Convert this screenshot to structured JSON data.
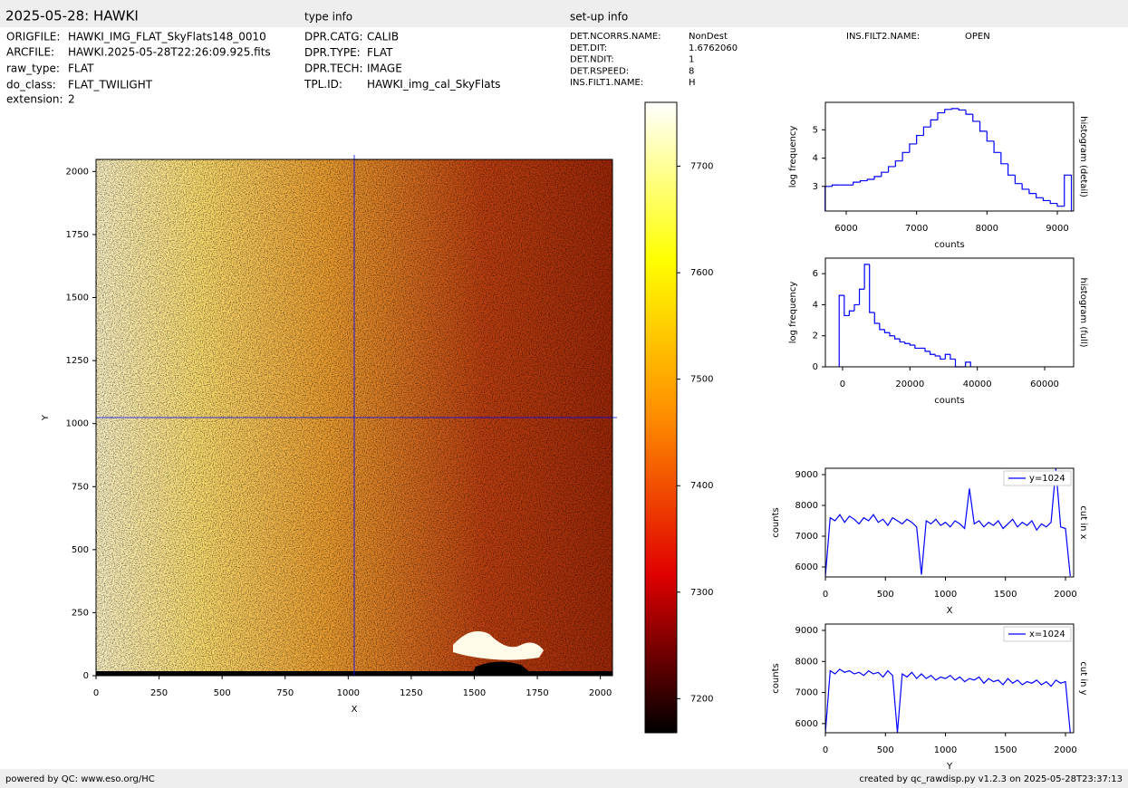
{
  "header": {
    "title": "2025-05-28: HAWKI"
  },
  "file_info": [
    {
      "key": "ORIGFILE:",
      "value": "HAWKI_IMG_FLAT_SkyFlats148_0010"
    },
    {
      "key": "ARCFILE:",
      "value": "HAWKI.2025-05-28T22:26:09.925.fits"
    },
    {
      "key": "raw_type:",
      "value": "FLAT"
    },
    {
      "key": "do_class:",
      "value": "FLAT_TWILIGHT"
    },
    {
      "key": "extension:",
      "value": "2"
    }
  ],
  "type_info": {
    "title": "type info",
    "rows": [
      {
        "key": "DPR.CATG:",
        "value": "CALIB"
      },
      {
        "key": "DPR.TYPE:",
        "value": "FLAT"
      },
      {
        "key": "DPR.TECH:",
        "value": "IMAGE"
      },
      {
        "key": "TPL.ID:",
        "value": "HAWKI_img_cal_SkyFlats"
      }
    ]
  },
  "setup_info": {
    "title": "set-up info",
    "rows": [
      {
        "key": "DET.NCORRS.NAME:",
        "value": "NonDest"
      },
      {
        "key": "DET.DIT:",
        "value": "1.6762060"
      },
      {
        "key": "DET.NDIT:",
        "value": "1"
      },
      {
        "key": "DET.RSPEED:",
        "value": "8"
      },
      {
        "key": "INS.FILT1.NAME:",
        "value": "H"
      },
      {
        "key": "INS.FILT2.NAME:",
        "value": "OPEN"
      }
    ]
  },
  "footer": {
    "left": "powered by QC: www.eso.org/HC",
    "right": "created by qc_rawdisp.py v1.2.3 on 2025-05-28T23:37:13"
  },
  "chart_data": [
    {
      "type": "image",
      "xlabel": "X",
      "ylabel": "Y",
      "xlim": [
        0,
        2048
      ],
      "ylim": [
        0,
        2048
      ],
      "xticks": [
        0,
        250,
        500,
        750,
        1000,
        1250,
        1500,
        1750,
        2000
      ],
      "yticks": [
        0,
        250,
        500,
        750,
        1000,
        1250,
        1500,
        1750,
        2000
      ],
      "crosshair": {
        "x": 1024,
        "y": 1024,
        "color": "#0000ff"
      }
    },
    {
      "type": "colorbar",
      "ylim": [
        7168,
        7760
      ],
      "yticks": [
        7200,
        7300,
        7400,
        7500,
        7600,
        7700
      ],
      "colormap": [
        "#000000",
        "#e00000",
        "#ff8c00",
        "#ffff00",
        "#ffffff"
      ]
    },
    {
      "type": "histogram",
      "xlabel": "counts",
      "ylabel": "log frequency",
      "side_label": "histogram (detail)",
      "color": "#0000ff",
      "xlim": [
        5704,
        9232
      ],
      "ylim": [
        2.13,
        5.97
      ],
      "xticks": [
        6000,
        7000,
        8000,
        9000
      ],
      "yticks": [
        3,
        4,
        5
      ],
      "bins": [
        5700,
        5800,
        5900,
        6000,
        6100,
        6200,
        6300,
        6400,
        6500,
        6600,
        6700,
        6800,
        6900,
        7000,
        7100,
        7200,
        7300,
        7400,
        7500,
        7600,
        7700,
        7800,
        7900,
        8000,
        8100,
        8200,
        8300,
        8400,
        8500,
        8600,
        8700,
        8800,
        8900,
        9000,
        9100,
        9200
      ],
      "counts": [
        3.0,
        3.05,
        3.05,
        3.05,
        3.15,
        3.2,
        3.25,
        3.35,
        3.5,
        3.7,
        3.9,
        4.2,
        4.5,
        4.8,
        5.1,
        5.35,
        5.6,
        5.72,
        5.75,
        5.7,
        5.55,
        5.3,
        4.95,
        4.6,
        4.2,
        3.8,
        3.4,
        3.1,
        2.9,
        2.75,
        2.6,
        2.5,
        2.4,
        2.3,
        3.4
      ]
    },
    {
      "type": "histogram",
      "xlabel": "counts",
      "ylabel": "log frequency",
      "side_label": "histogram (full)",
      "color": "#0000ff",
      "xlim": [
        -5100,
        68600
      ],
      "ylim": [
        0,
        7
      ],
      "xticks": [
        0,
        20000,
        40000,
        60000
      ],
      "yticks": [
        0,
        2,
        4,
        6
      ],
      "bins": [
        -1000,
        500,
        2000,
        3500,
        5000,
        6500,
        8000,
        9500,
        11000,
        12500,
        14000,
        15500,
        17000,
        18500,
        20000,
        21500,
        23000,
        24500,
        26000,
        27500,
        29000,
        30500,
        32000,
        33500,
        35000,
        36500,
        38000
      ],
      "counts": [
        4.6,
        3.3,
        3.6,
        4.0,
        5.0,
        6.6,
        3.5,
        2.8,
        2.4,
        2.2,
        2.0,
        1.8,
        1.6,
        1.5,
        1.4,
        1.2,
        1.2,
        1.0,
        0.8,
        0.7,
        0.5,
        0.8,
        0.5,
        0,
        0,
        0.3
      ]
    },
    {
      "type": "line",
      "xlabel": "X",
      "ylabel": "counts",
      "side_label": "cut in x",
      "xlim": [
        0,
        2068
      ],
      "ylim": [
        5676,
        9206
      ],
      "xticks": [
        0,
        500,
        1000,
        1500,
        2000
      ],
      "yticks": [
        6000,
        7000,
        8000,
        9000
      ],
      "x": [
        0,
        40,
        80,
        120,
        160,
        200,
        240,
        280,
        320,
        360,
        400,
        440,
        480,
        520,
        560,
        600,
        640,
        680,
        720,
        760,
        800,
        840,
        880,
        920,
        960,
        1000,
        1040,
        1080,
        1120,
        1160,
        1200,
        1240,
        1280,
        1320,
        1360,
        1400,
        1440,
        1480,
        1520,
        1560,
        1600,
        1640,
        1680,
        1720,
        1760,
        1800,
        1840,
        1880,
        1920,
        1960,
        2000,
        2040
      ],
      "series": [
        {
          "name": "y=1024",
          "color": "#0000ff",
          "values": [
            5700,
            7600,
            7500,
            7700,
            7450,
            7650,
            7550,
            7400,
            7600,
            7500,
            7700,
            7450,
            7550,
            7350,
            7600,
            7500,
            7400,
            7550,
            7450,
            7300,
            5750,
            7500,
            7400,
            7550,
            7350,
            7450,
            7300,
            7500,
            7400,
            7250,
            8550,
            7400,
            7500,
            7300,
            7450,
            7350,
            7500,
            7250,
            7400,
            7550,
            7300,
            7450,
            7350,
            7500,
            7200,
            7400,
            7300,
            7450,
            9200,
            7300,
            7250,
            5700
          ]
        }
      ]
    },
    {
      "type": "line",
      "xlabel": "Y",
      "ylabel": "counts",
      "side_label": "cut in y",
      "xlim": [
        0,
        2068
      ],
      "ylim": [
        5705,
        9204
      ],
      "xticks": [
        0,
        500,
        1000,
        1500,
        2000
      ],
      "yticks": [
        6000,
        7000,
        8000,
        9000
      ],
      "x": [
        0,
        40,
        80,
        120,
        160,
        200,
        240,
        280,
        320,
        360,
        400,
        440,
        480,
        520,
        560,
        600,
        640,
        680,
        720,
        760,
        800,
        840,
        880,
        920,
        960,
        1000,
        1040,
        1080,
        1120,
        1160,
        1200,
        1240,
        1280,
        1320,
        1360,
        1400,
        1440,
        1480,
        1520,
        1560,
        1600,
        1640,
        1680,
        1720,
        1760,
        1800,
        1840,
        1880,
        1920,
        1960,
        2000,
        2040
      ],
      "series": [
        {
          "name": "x=1024",
          "color": "#0000ff",
          "values": [
            5705,
            7700,
            7600,
            7750,
            7650,
            7700,
            7600,
            7650,
            7550,
            7700,
            7600,
            7650,
            7500,
            7700,
            7550,
            5705,
            7600,
            7500,
            7650,
            7450,
            7600,
            7450,
            7550,
            7400,
            7500,
            7450,
            7550,
            7400,
            7500,
            7350,
            7450,
            7400,
            7500,
            7300,
            7450,
            7350,
            7400,
            7250,
            7450,
            7300,
            7400,
            7250,
            7350,
            7300,
            7400,
            7250,
            7350,
            7200,
            7400,
            7300,
            7350,
            5705
          ]
        }
      ]
    }
  ]
}
